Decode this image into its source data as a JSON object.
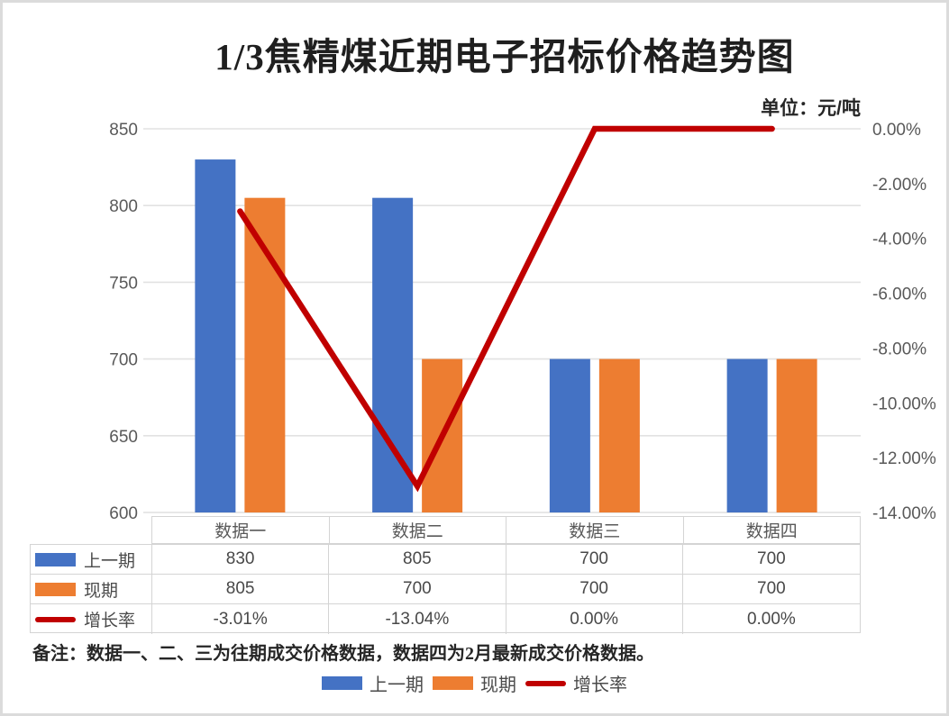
{
  "title": "1/3焦精煤近期电子招标价格趋势图",
  "unit_label": "单位：元/吨",
  "note": "备注：数据一、二、三为往期成交价格数据，数据四为2月最新成交价格数据。",
  "chart_data": {
    "type": "combo-bar-line",
    "title": "1/3焦精煤近期电子招标价格趋势图",
    "categories": [
      "数据一",
      "数据二",
      "数据三",
      "数据四"
    ],
    "series": [
      {
        "name": "上一期",
        "type": "bar",
        "axis": "left",
        "color": "#4472C4",
        "values": [
          830,
          805,
          700,
          700
        ]
      },
      {
        "name": "现期",
        "type": "bar",
        "axis": "left",
        "color": "#ED7D31",
        "values": [
          805,
          700,
          700,
          700
        ]
      },
      {
        "name": "增长率",
        "type": "line",
        "axis": "right",
        "color": "#C00000",
        "values": [
          -3.01,
          -13.04,
          0,
          0
        ],
        "labels": [
          "-3.01%",
          "-13.04%",
          "0.00%",
          "0.00%"
        ]
      }
    ],
    "left_axis": {
      "min": 600,
      "max": 850,
      "tick_values": [
        850,
        800,
        750,
        700,
        650,
        600
      ],
      "tick_labels": [
        "850",
        "800",
        "750",
        "700",
        "650",
        "600"
      ]
    },
    "right_axis": {
      "min": -14,
      "max": 0,
      "tick_values": [
        0,
        -2,
        -4,
        -6,
        -8,
        -10,
        -12,
        -14
      ],
      "tick_labels": [
        "0.00%",
        "-2.00%",
        "-4.00%",
        "-6.00%",
        "-8.00%",
        "-10.00%",
        "-12.00%",
        "-14.00%"
      ]
    },
    "grid": true,
    "legend_position": "bottom"
  },
  "table": {
    "column_headers": [
      "数据一",
      "数据二",
      "数据三",
      "数据四"
    ],
    "rows": [
      {
        "label": "上一期",
        "swatch": "bar",
        "color": "#4472C4",
        "values": [
          "830",
          "805",
          "700",
          "700"
        ]
      },
      {
        "label": "现期",
        "swatch": "bar",
        "color": "#ED7D31",
        "values": [
          "805",
          "700",
          "700",
          "700"
        ]
      },
      {
        "label": "增长率",
        "swatch": "line",
        "color": "#C00000",
        "values": [
          "-3.01%",
          "-13.04%",
          "0.00%",
          "0.00%"
        ]
      }
    ]
  },
  "legend": {
    "items": [
      {
        "label": "上一期",
        "swatch": "bar",
        "color": "#4472C4"
      },
      {
        "label": "现期",
        "swatch": "bar",
        "color": "#ED7D31"
      },
      {
        "label": "增长率",
        "swatch": "line",
        "color": "#C00000"
      }
    ]
  },
  "colors": {
    "bar_previous": "#4472C4",
    "bar_current": "#ED7D31",
    "line_growth": "#C00000",
    "gridline": "#E2E2E2",
    "axis_text": "#595959",
    "table_border": "#D4D4D4",
    "table_text": "#484848",
    "title_text": "#1F1F1F",
    "canvas_border": "#DBDBDB"
  }
}
